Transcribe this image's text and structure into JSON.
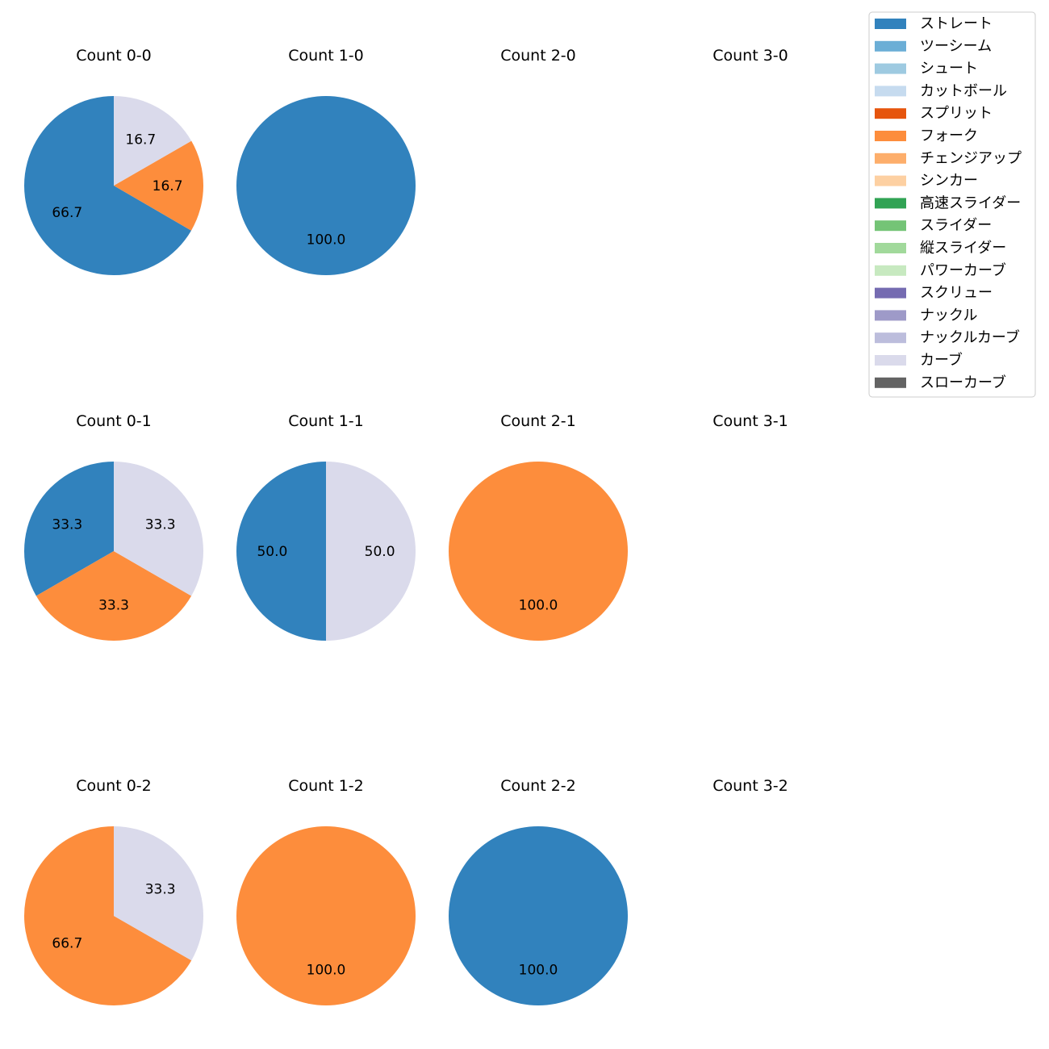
{
  "chart_data": {
    "type": "pie",
    "legend": {
      "placement": "top-right",
      "entries": [
        {
          "label": "ストレート",
          "color": "#3182bd"
        },
        {
          "label": "ツーシーム",
          "color": "#6baed6"
        },
        {
          "label": "シュート",
          "color": "#9ecae1"
        },
        {
          "label": "カットボール",
          "color": "#c6dbef"
        },
        {
          "label": "スプリット",
          "color": "#e6550d"
        },
        {
          "label": "フォーク",
          "color": "#fd8d3c"
        },
        {
          "label": "チェンジアップ",
          "color": "#fdae6b"
        },
        {
          "label": "シンカー",
          "color": "#fdd0a2"
        },
        {
          "label": "高速スライダー",
          "color": "#31a354"
        },
        {
          "label": "スライダー",
          "color": "#74c476"
        },
        {
          "label": "縦スライダー",
          "color": "#a1d99b"
        },
        {
          "label": "パワーカーブ",
          "color": "#c7e9c0"
        },
        {
          "label": "スクリュー",
          "color": "#756bb1"
        },
        {
          "label": "ナックル",
          "color": "#9e9ac8"
        },
        {
          "label": "ナックルカーブ",
          "color": "#bcbddc"
        },
        {
          "label": "カーブ",
          "color": "#dadaeb"
        },
        {
          "label": "スローカーブ",
          "color": "#636363"
        }
      ]
    },
    "charts": [
      {
        "title": "Count 0-0",
        "slices": [
          {
            "pitch": "ストレート",
            "value": 66.7
          },
          {
            "pitch": "フォーク",
            "value": 16.7
          },
          {
            "pitch": "カーブ",
            "value": 16.7
          }
        ]
      },
      {
        "title": "Count 1-0",
        "slices": [
          {
            "pitch": "ストレート",
            "value": 100.0
          }
        ]
      },
      {
        "title": "Count 2-0",
        "slices": []
      },
      {
        "title": "Count 3-0",
        "slices": []
      },
      {
        "title": "Count 0-1",
        "slices": [
          {
            "pitch": "ストレート",
            "value": 33.3
          },
          {
            "pitch": "フォーク",
            "value": 33.3
          },
          {
            "pitch": "カーブ",
            "value": 33.3
          }
        ]
      },
      {
        "title": "Count 1-1",
        "slices": [
          {
            "pitch": "ストレート",
            "value": 50.0
          },
          {
            "pitch": "カーブ",
            "value": 50.0
          }
        ]
      },
      {
        "title": "Count 2-1",
        "slices": [
          {
            "pitch": "フォーク",
            "value": 100.0
          }
        ]
      },
      {
        "title": "Count 3-1",
        "slices": []
      },
      {
        "title": "Count 0-2",
        "slices": [
          {
            "pitch": "フォーク",
            "value": 66.7
          },
          {
            "pitch": "カーブ",
            "value": 33.3
          }
        ]
      },
      {
        "title": "Count 1-2",
        "slices": [
          {
            "pitch": "フォーク",
            "value": 100.0
          }
        ]
      },
      {
        "title": "Count 2-2",
        "slices": [
          {
            "pitch": "ストレート",
            "value": 100.0
          }
        ]
      },
      {
        "title": "Count 3-2",
        "slices": []
      }
    ]
  }
}
